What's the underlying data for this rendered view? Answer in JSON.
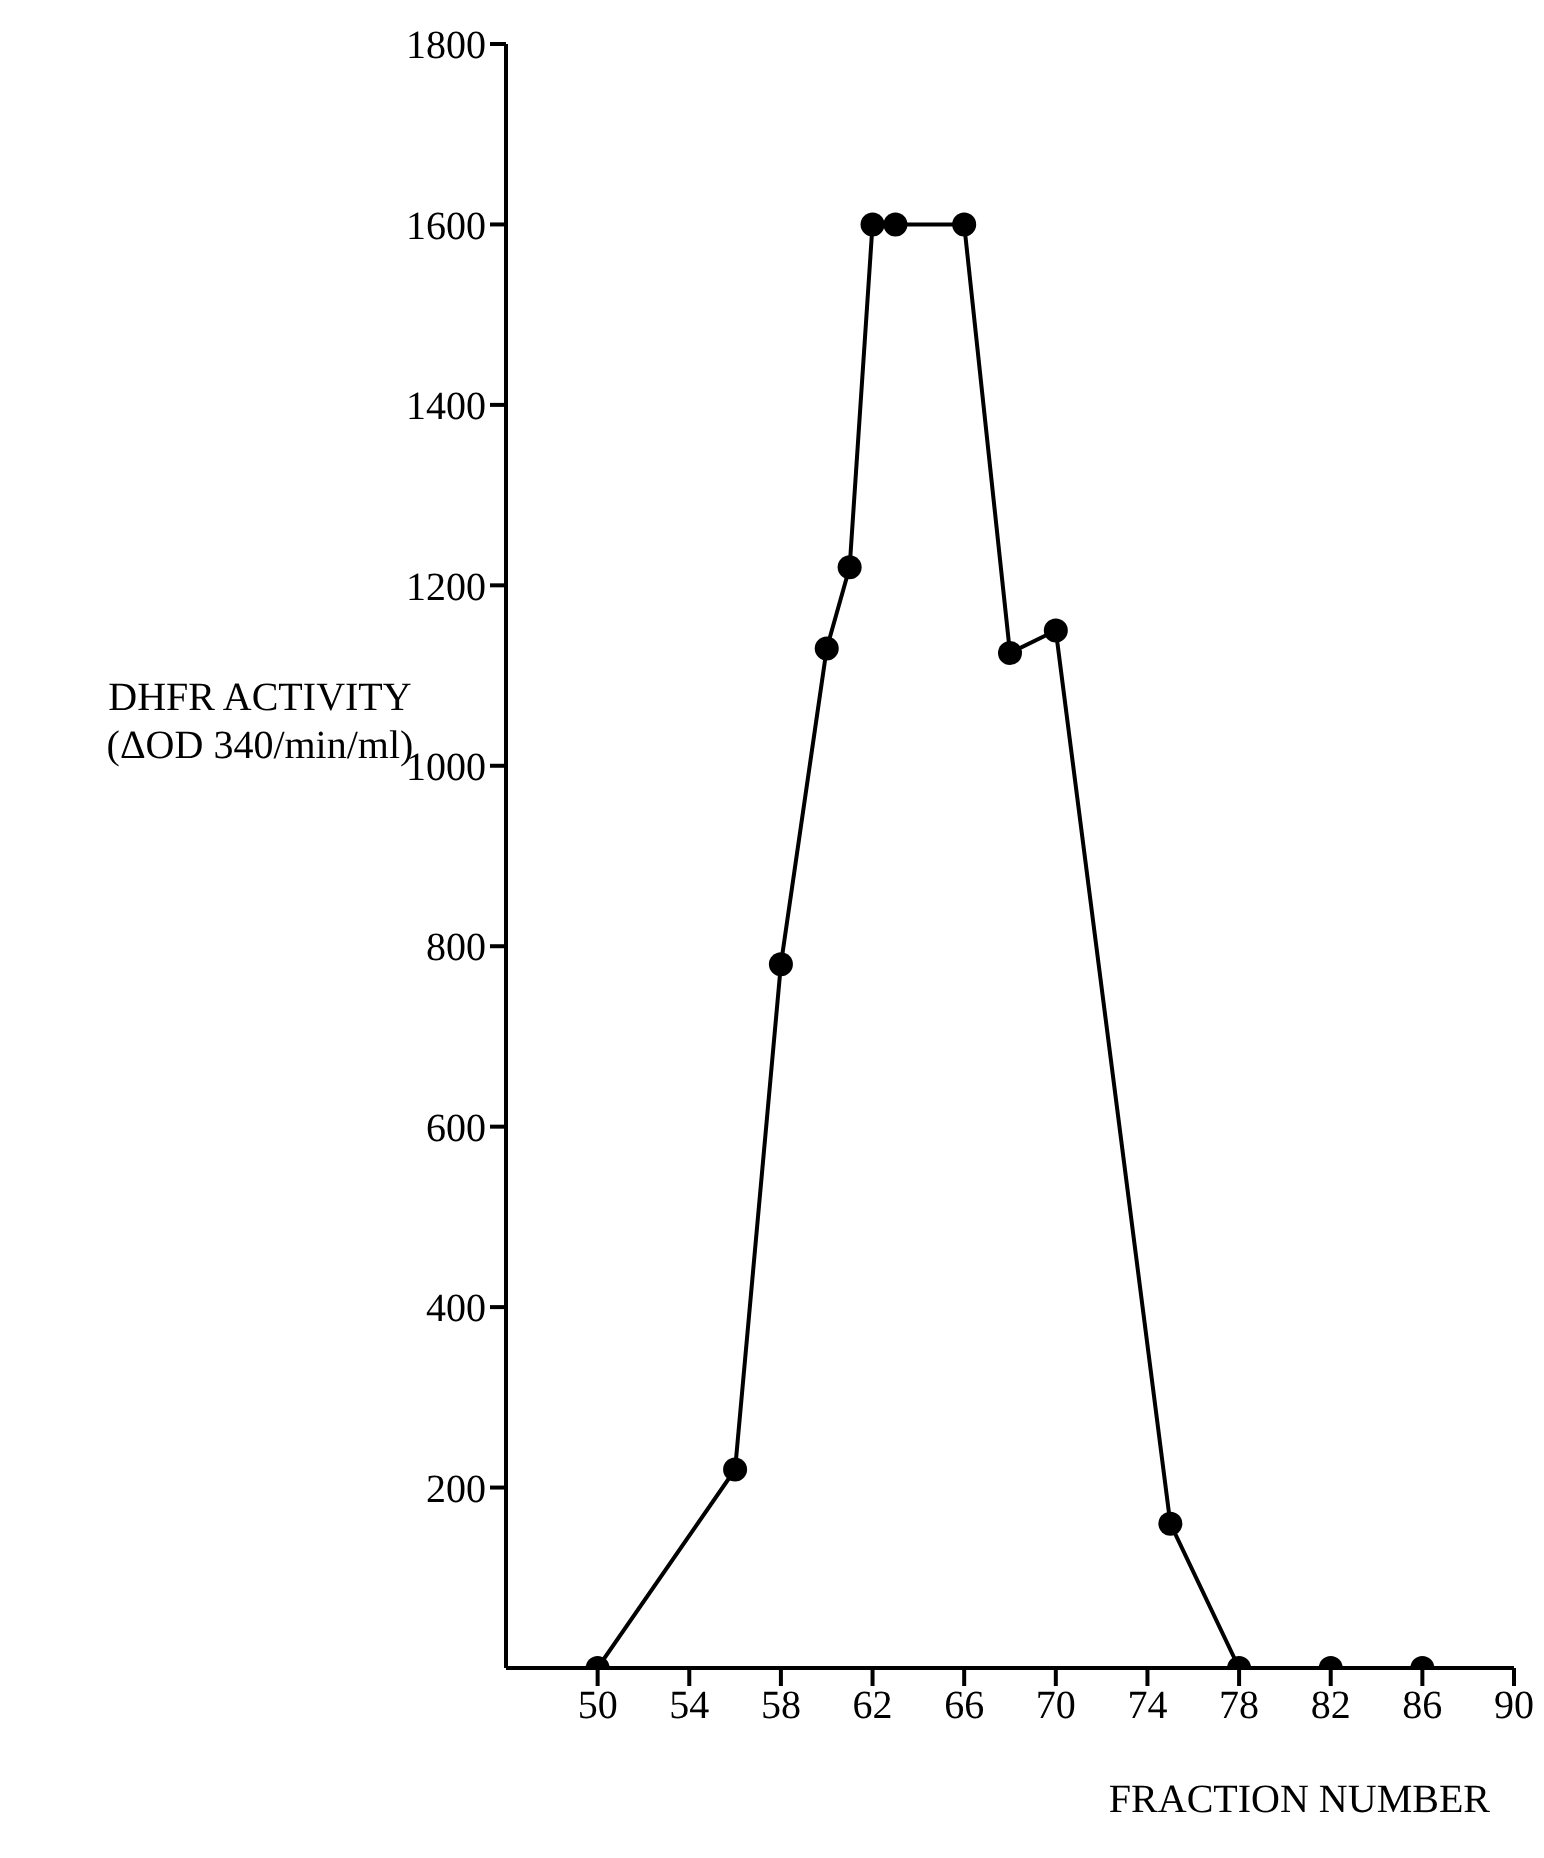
{
  "chart_data": {
    "type": "line",
    "xlabel": "FRACTION NUMBER",
    "ylabel": "DHFR ACTIVITY (ΔOD 340/min/ml)",
    "x": [
      50,
      56,
      58,
      60,
      61,
      62,
      63,
      66,
      68,
      70,
      75,
      78,
      82,
      86
    ],
    "series": [
      {
        "color": "#000000",
        "values": [
          0,
          220,
          780,
          1130,
          1220,
          1600,
          1600,
          1600,
          1125,
          1150,
          160,
          0,
          0,
          0
        ]
      }
    ],
    "xlim": [
      46,
      90
    ],
    "xticks": [
      50,
      54,
      58,
      62,
      66,
      70,
      74,
      78,
      82,
      86,
      90
    ],
    "ylim": [
      0,
      1800
    ],
    "yticks": [
      200,
      400,
      600,
      800,
      1000,
      1200,
      1400,
      1600,
      1800
    ],
    "marker": "circle",
    "line_style": "solid",
    "grid": false,
    "legend": false
  }
}
